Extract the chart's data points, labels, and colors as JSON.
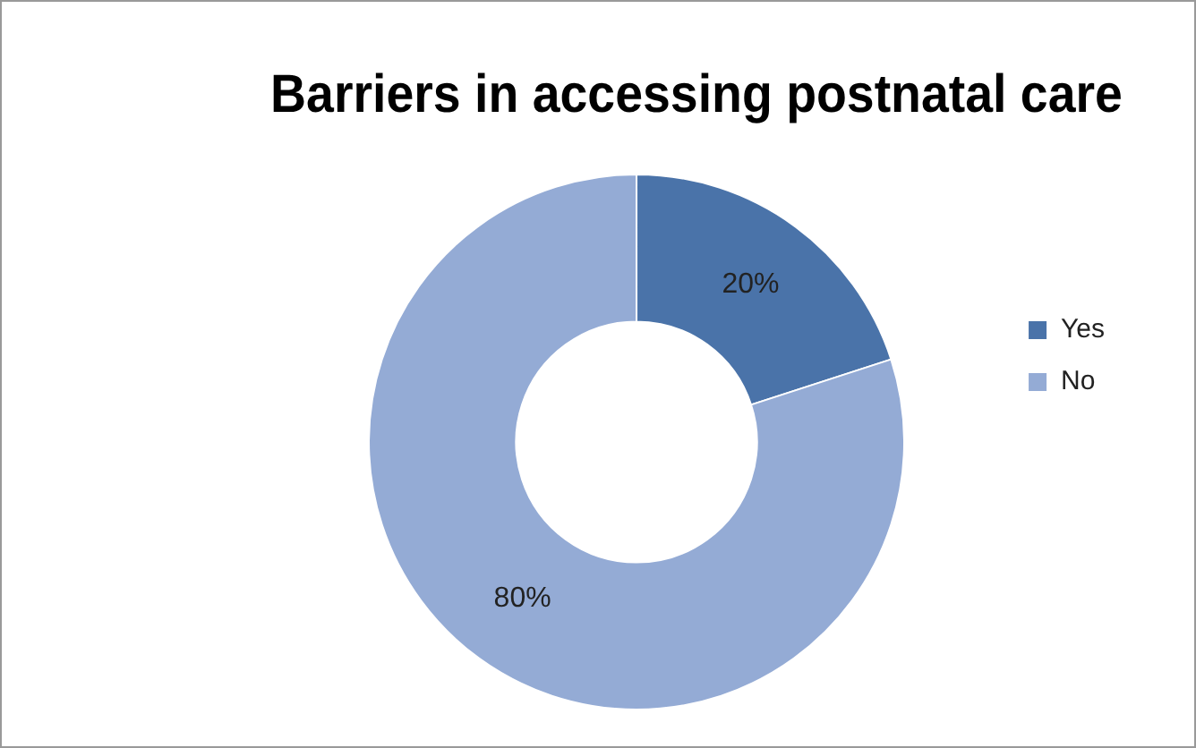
{
  "chart_data": {
    "type": "donut",
    "title": "Barriers in accessing postnatal care",
    "categories": [
      "Yes",
      "No"
    ],
    "values": [
      20,
      80
    ],
    "colors": [
      "#4a73a9",
      "#94abd5"
    ],
    "value_labels": [
      "20%",
      "80%"
    ],
    "legend": "right"
  }
}
